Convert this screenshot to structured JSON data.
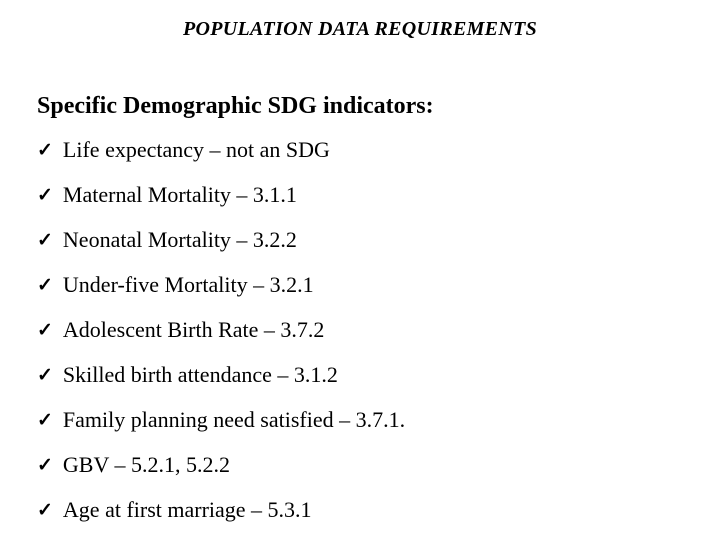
{
  "slide": {
    "background_color": "#ffffff",
    "text_color": "#000000",
    "title": "POPULATION DATA REQUIREMENTS",
    "heading": "Specific Demographic SDG indicators:",
    "bullet_glyph": "✓",
    "items": [
      "Life expectancy – not an SDG",
      "Maternal Mortality – 3.1.1",
      "Neonatal Mortality – 3.2.2",
      "Under-five Mortality – 3.2.1",
      "Adolescent Birth Rate – 3.7.2",
      "Skilled birth attendance – 3.1.2",
      "Family planning need satisfied – 3.7.1.",
      "GBV – 5.2.1, 5.2.2",
      "Age at first marriage – 5.3.1"
    ]
  }
}
